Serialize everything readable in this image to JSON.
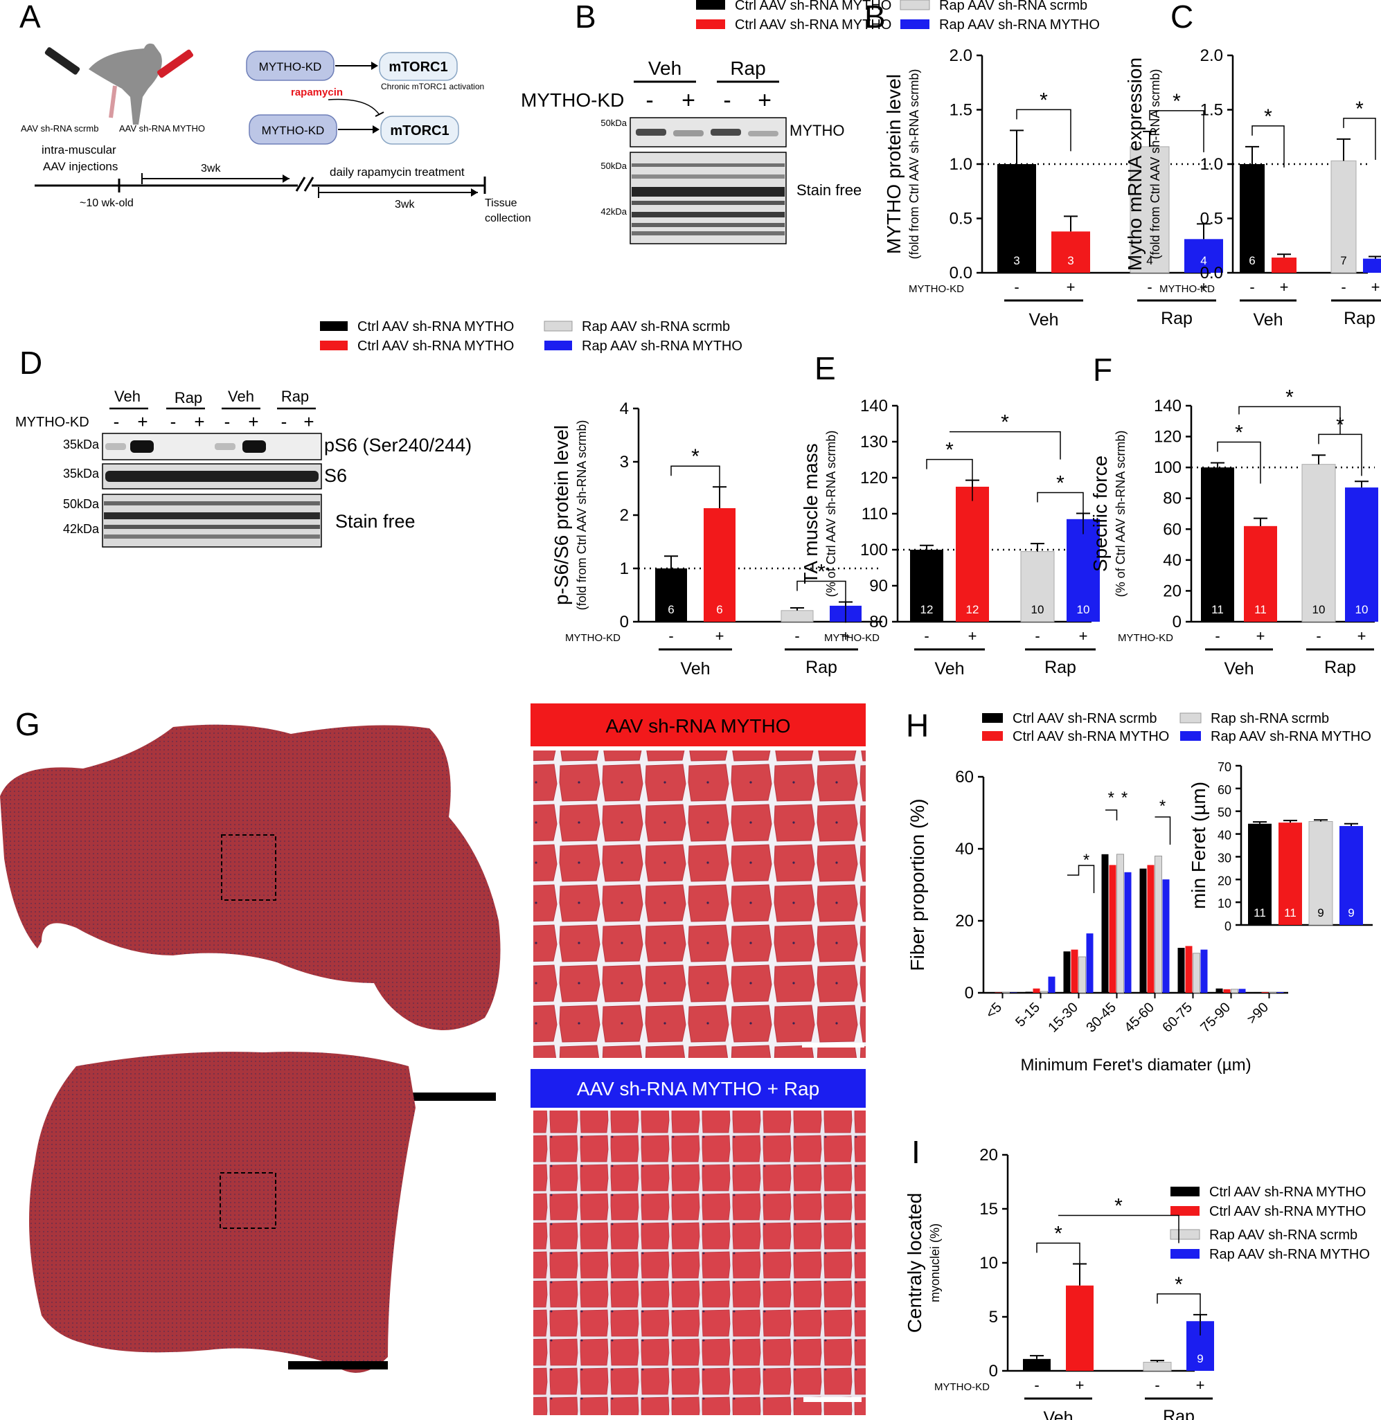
{
  "panels": {
    "A": {
      "letter": "A",
      "label_scrmb": "AAV sh-RNA scrmb",
      "label_mytho": "AAV sh-RNA MYTHO",
      "injection": [
        "intra-muscular",
        "AAV injections"
      ],
      "age": "~10 wk-old",
      "wk1": "3wk",
      "treatment": "daily rapamycin treatment",
      "wk2": "3wk",
      "tissue": [
        "Tissue",
        "collection"
      ],
      "kd": "MYTHO-KD",
      "mtorc": "mTORC1",
      "chronic": "Chronic mTORC1 activation",
      "rapamycin": "rapamycin",
      "rapamycin_color": "#e8141b"
    },
    "B": {
      "letter": "B",
      "veh": "Veh",
      "rap": "Rap",
      "kd": "MYTHO-KD",
      "signs": [
        "-",
        "+",
        "-",
        "+"
      ],
      "markers": [
        "50kDa",
        "50kDa",
        "42kDa"
      ],
      "band_mytho": "MYTHO",
      "band_stain": "Stain free"
    },
    "D": {
      "letter": "D",
      "groups": [
        "Veh",
        "Rap",
        "Veh",
        "Rap"
      ],
      "kd": "MYTHO-KD",
      "signs": [
        "-",
        "+",
        "-",
        "+",
        "-",
        "+",
        "-",
        "+"
      ],
      "markers": [
        "35kDa",
        "35kDa",
        "50kDa",
        "42kDa"
      ],
      "bands": [
        "pS6 (Ser240/244)",
        "S6",
        "Stain free"
      ]
    },
    "G": {
      "letter": "G",
      "label_top": "AAV sh-RNA MYTHO",
      "label_bottom": "AAV sh-RNA MYTHO + Rap",
      "top_color": "#f2191b",
      "bottom_color": "#1b1ef0"
    }
  },
  "legends": {
    "top": [
      "Ctrl AAV sh-RNA MYTHO",
      "Ctrl AAV sh-RNA MYTHO",
      "Rap AAV sh-RNA scrmb",
      "Rap AAV sh-RNA MYTHO"
    ],
    "middle": [
      "Ctrl AAV sh-RNA MYTHO",
      "Ctrl AAV sh-RNA MYTHO",
      "Rap AAV sh-RNA scrmb",
      "Rap AAV sh-RNA MYTHO"
    ],
    "H": [
      "Ctrl AAV sh-RNA scrmb",
      "Ctrl AAV sh-RNA MYTHO",
      "Rap sh-RNA scrmb",
      "Rap AAV sh-RNA MYTHO"
    ],
    "I": [
      "Ctrl AAV sh-RNA MYTHO",
      "Ctrl AAV sh-RNA MYTHO",
      "Rap AAV sh-RNA scrmb",
      "Rap AAV sh-RNA MYTHO"
    ]
  },
  "colors": {
    "black": "#000000",
    "red": "#f2191b",
    "grey": "#d9d9d9",
    "blue": "#1b1ef0"
  },
  "chart_data": [
    {
      "id": "B",
      "type": "bar",
      "letter": "B",
      "ylabel": "MYTHO protein level",
      "ysublabel": "(fold from Ctrl AAV sh-RNA scrmb)",
      "ylim": [
        0,
        2.0
      ],
      "yticks": [
        "0.0",
        "0.5",
        "1.0",
        "1.5",
        "2.0"
      ],
      "values": [
        1.0,
        0.38,
        1.16,
        0.31
      ],
      "errors": [
        0.31,
        0.14,
        0.14,
        0.14
      ],
      "n": [
        "3",
        "3",
        "4",
        "4"
      ],
      "reference_line": 1.0,
      "kd_label": "MYTHO-KD",
      "signs": [
        "-",
        "+",
        "-",
        "+"
      ],
      "groups": [
        "Veh",
        "Rap"
      ],
      "significance": [
        "*",
        "*"
      ]
    },
    {
      "id": "C",
      "type": "bar",
      "letter": "C",
      "ylabel": "Mytho mRNA expression",
      "ysublabel": "(fold from Ctrl AAV sh-RNA scrmb)",
      "ylim": [
        0,
        2.0
      ],
      "yticks": [
        "0.0",
        "0.5",
        "1.0",
        "1.5",
        "2.0"
      ],
      "values": [
        1.0,
        0.14,
        1.03,
        0.13
      ],
      "errors": [
        0.16,
        0.03,
        0.2,
        0.02
      ],
      "n": [
        "6",
        "",
        "7",
        ""
      ],
      "reference_line": 1.0,
      "kd_label": "MYTHO-KD",
      "signs": [
        "-",
        "+",
        "-",
        "+"
      ],
      "groups": [
        "Veh",
        "Rap"
      ],
      "significance": [
        "*",
        "*"
      ]
    },
    {
      "id": "D",
      "type": "bar",
      "letter": "",
      "ylabel": "p-S6/S6 protein level",
      "ysublabel": "(fold from Ctrl AAV sh-RNA scrmb)",
      "ylim": [
        0,
        4
      ],
      "yticks": [
        "0",
        "1",
        "2",
        "3",
        "4"
      ],
      "values": [
        1.0,
        2.13,
        0.21,
        0.3
      ],
      "errors": [
        0.23,
        0.4,
        0.05,
        0.07
      ],
      "n": [
        "6",
        "6",
        "",
        ""
      ],
      "reference_line": 1.0,
      "kd_label": "MYTHO-KD",
      "signs": [
        "-",
        "+",
        "-",
        "+"
      ],
      "groups": [
        "Veh",
        "Rap"
      ],
      "significance": [
        "*",
        "*"
      ]
    },
    {
      "id": "E",
      "type": "bar",
      "letter": "E",
      "ylabel": "TA muscle mass",
      "ysublabel": "(% of Ctrl AAV sh-RNA scrmb)",
      "ylim": [
        80,
        140
      ],
      "yticks": [
        "80",
        "90",
        "100",
        "110",
        "120",
        "130",
        "140"
      ],
      "values": [
        100,
        117.5,
        99.5,
        108.5
      ],
      "errors": [
        1.2,
        1.8,
        2.2,
        1.6
      ],
      "n": [
        "12",
        "12",
        "10",
        "10"
      ],
      "reference_line": 100,
      "kd_label": "MYTHO-KD",
      "signs": [
        "-",
        "+",
        "-",
        "+"
      ],
      "groups": [
        "Veh",
        "Rap"
      ],
      "significance": [
        "*",
        "*",
        "*"
      ]
    },
    {
      "id": "F",
      "type": "bar",
      "letter": "F",
      "ylabel": "Specific force",
      "ysublabel": "(% of Ctrl AAV sh-RNA scrmb)",
      "ylim": [
        0,
        140
      ],
      "yticks": [
        "0",
        "20",
        "40",
        "60",
        "80",
        "100",
        "120",
        "140"
      ],
      "values": [
        100,
        62,
        102,
        87
      ],
      "errors": [
        3,
        5,
        6,
        4
      ],
      "n": [
        "11",
        "11",
        "10",
        "10"
      ],
      "reference_line": 100,
      "kd_label": "MYTHO-KD",
      "signs": [
        "-",
        "+",
        "-",
        "+"
      ],
      "groups": [
        "Veh",
        "Rap"
      ],
      "significance": [
        "*",
        "*",
        "*"
      ]
    },
    {
      "id": "H",
      "type": "bar",
      "letter": "H",
      "ylabel": "Fiber proportion (%)",
      "xlabel": "Minimum Feret's diamater (µm)",
      "ylim": [
        0,
        60
      ],
      "yticks": [
        "0",
        "20",
        "40",
        "60"
      ],
      "categories": [
        "<5",
        "5-15",
        "15-30",
        "30-45",
        "45-60",
        "60-75",
        "75-90",
        ">90"
      ],
      "series": [
        {
          "name": "Ctrl AAV sh-RNA scrmb",
          "values": [
            0.1,
            0.3,
            11.5,
            38.5,
            34.5,
            12.5,
            1.2,
            0.2
          ]
        },
        {
          "name": "Ctrl AAV sh-RNA MYTHO",
          "values": [
            0.1,
            1.2,
            12,
            35.5,
            35.5,
            13,
            1,
            0.2
          ]
        },
        {
          "name": "Rap sh-RNA scrmb",
          "values": [
            0.1,
            0.4,
            10,
            38.5,
            38,
            11,
            1,
            0.2
          ]
        },
        {
          "name": "Rap AAV sh-RNA MYTHO",
          "values": [
            0.1,
            4.5,
            16.5,
            33.5,
            31.5,
            12,
            1.1,
            0.2
          ]
        }
      ],
      "significance": [
        "*",
        "*",
        "*",
        "*"
      ]
    },
    {
      "id": "H_inset",
      "type": "bar",
      "letter": "",
      "ylabel": "min Feret (µm)",
      "ylim": [
        0,
        70
      ],
      "yticks": [
        "0",
        "10",
        "20",
        "30",
        "40",
        "50",
        "60",
        "70"
      ],
      "values": [
        44.5,
        45,
        45.5,
        43.5
      ],
      "errors": [
        0.8,
        0.9,
        0.7,
        1.0
      ],
      "n": [
        "11",
        "11",
        "9",
        "9"
      ]
    },
    {
      "id": "I",
      "type": "bar",
      "letter": "I",
      "ylabel": "Centraly located",
      "ysublabel": "myonuclei (%)",
      "ylim": [
        0,
        20
      ],
      "yticks": [
        "0",
        "5",
        "10",
        "15",
        "20"
      ],
      "values": [
        1.1,
        7.9,
        0.8,
        4.6
      ],
      "errors": [
        0.3,
        2.0,
        0.15,
        0.6
      ],
      "n": [
        "",
        "",
        "",
        "9"
      ],
      "kd_label": "MYTHO-KD",
      "signs": [
        "-",
        "+",
        "-",
        "+"
      ],
      "groups": [
        "Veh",
        "Rap"
      ],
      "significance": [
        "*",
        "*",
        "*"
      ]
    }
  ]
}
